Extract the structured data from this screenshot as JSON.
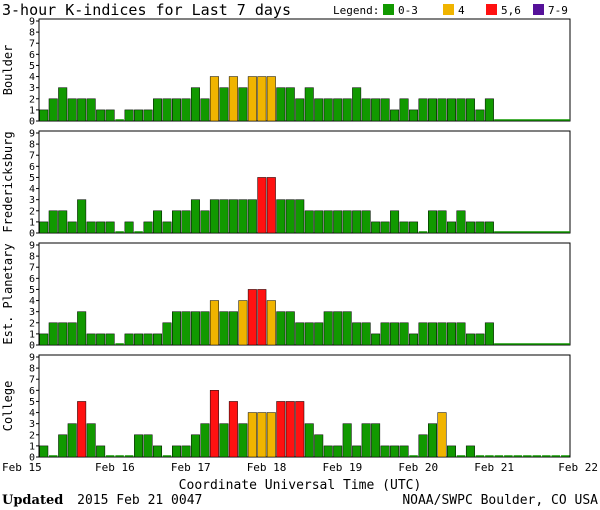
{
  "title": "3-hour K-indices for Last 7 days",
  "legend": {
    "label": "Legend:",
    "items": [
      {
        "label": "0-3",
        "color": "#119900"
      },
      {
        "label": "4",
        "color": "#f0b400"
      },
      {
        "label": "5,6",
        "color": "#ff1111"
      },
      {
        "label": "7-9",
        "color": "#551199"
      }
    ]
  },
  "footer": {
    "updated_label": "Updated",
    "updated_time": "2015 Feb 21 0047",
    "source": "NOAA/SWPC Boulder, CO USA"
  },
  "chart_data": [
    {
      "type": "bar",
      "station": "Boulder",
      "ylabel": "Boulder",
      "ylim": [
        0,
        9
      ],
      "yticks": [
        0,
        1,
        2,
        3,
        4,
        5,
        6,
        7,
        8,
        9
      ],
      "xlim": [
        "Feb 15",
        "Feb 22"
      ],
      "xticks": [
        "Feb 15",
        "Feb 16",
        "Feb 17",
        "Feb 18",
        "Feb 19",
        "Feb 20",
        "Feb 21",
        "Feb 22"
      ],
      "grid": false,
      "interval_hours": 3,
      "values": [
        1,
        2,
        3,
        2,
        2,
        2,
        1,
        1,
        0,
        1,
        1,
        1,
        2,
        2,
        2,
        2,
        3,
        2,
        4,
        3,
        4,
        3,
        4,
        4,
        4,
        3,
        3,
        2,
        3,
        2,
        2,
        2,
        2,
        3,
        2,
        2,
        2,
        1,
        2,
        1,
        2,
        2,
        2,
        2,
        2,
        2,
        1,
        2
      ]
    },
    {
      "type": "bar",
      "station": "Fredericksburg",
      "ylabel": "Fredericksburg",
      "ylim": [
        0,
        9
      ],
      "yticks": [
        0,
        1,
        2,
        3,
        4,
        5,
        6,
        7,
        8,
        9
      ],
      "xlim": [
        "Feb 15",
        "Feb 22"
      ],
      "xticks": [
        "Feb 15",
        "Feb 16",
        "Feb 17",
        "Feb 18",
        "Feb 19",
        "Feb 20",
        "Feb 21",
        "Feb 22"
      ],
      "grid": false,
      "interval_hours": 3,
      "values": [
        1,
        2,
        2,
        1,
        3,
        1,
        1,
        1,
        0,
        1,
        0,
        1,
        2,
        1,
        2,
        2,
        3,
        2,
        3,
        3,
        3,
        3,
        3,
        5,
        5,
        3,
        3,
        3,
        2,
        2,
        2,
        2,
        2,
        2,
        2,
        1,
        1,
        2,
        1,
        1,
        0,
        2,
        2,
        1,
        2,
        1,
        1,
        1
      ]
    },
    {
      "type": "bar",
      "station": "Est. Planetary",
      "ylabel": "Est. Planetary",
      "ylim": [
        0,
        9
      ],
      "yticks": [
        0,
        1,
        2,
        3,
        4,
        5,
        6,
        7,
        8,
        9
      ],
      "xlim": [
        "Feb 15",
        "Feb 22"
      ],
      "xticks": [
        "Feb 15",
        "Feb 16",
        "Feb 17",
        "Feb 18",
        "Feb 19",
        "Feb 20",
        "Feb 21",
        "Feb 22"
      ],
      "grid": false,
      "interval_hours": 3,
      "values": [
        1,
        2,
        2,
        2,
        3,
        1,
        1,
        1,
        0,
        1,
        1,
        1,
        1,
        2,
        3,
        3,
        3,
        3,
        4,
        3,
        3,
        4,
        5,
        5,
        4,
        3,
        3,
        2,
        2,
        2,
        3,
        3,
        3,
        2,
        2,
        1,
        2,
        2,
        2,
        1,
        2,
        2,
        2,
        2,
        2,
        1,
        1,
        2
      ]
    },
    {
      "type": "bar",
      "station": "College",
      "ylabel": "College",
      "ylim": [
        0,
        9
      ],
      "yticks": [
        0,
        1,
        2,
        3,
        4,
        5,
        6,
        7,
        8,
        9
      ],
      "xlim": [
        "Feb 15",
        "Feb 22"
      ],
      "xticks": [
        "Feb 15",
        "Feb 16",
        "Feb 17",
        "Feb 18",
        "Feb 19",
        "Feb 20",
        "Feb 21",
        "Feb 22"
      ],
      "grid": false,
      "interval_hours": 3,
      "values": [
        1,
        0,
        2,
        3,
        5,
        3,
        1,
        0,
        0,
        0,
        2,
        2,
        1,
        0,
        1,
        1,
        2,
        3,
        6,
        3,
        5,
        3,
        4,
        4,
        4,
        5,
        5,
        5,
        3,
        2,
        1,
        1,
        3,
        1,
        3,
        3,
        1,
        1,
        1,
        0,
        2,
        3,
        4,
        1,
        0,
        1,
        0,
        0,
        0,
        0,
        0,
        0,
        0,
        0,
        0,
        0
      ]
    }
  ],
  "xaxis_title": "Coordinate Universal Time (UTC)"
}
